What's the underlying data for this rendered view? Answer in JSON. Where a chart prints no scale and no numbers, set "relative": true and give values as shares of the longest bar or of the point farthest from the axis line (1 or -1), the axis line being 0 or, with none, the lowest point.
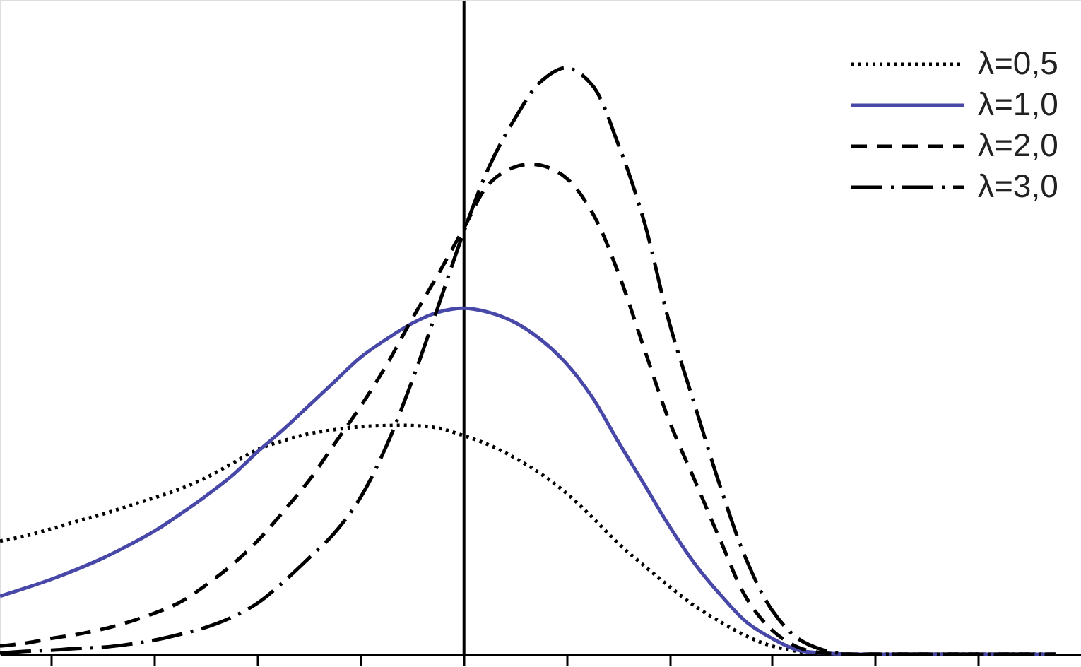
{
  "chart_data": {
    "type": "line",
    "relative": true,
    "legend": "top right",
    "categories": [
      null,
      null,
      null,
      null,
      null,
      null,
      null,
      null,
      null,
      null,
      null,
      null,
      null,
      null,
      null,
      null,
      null,
      null,
      null,
      null,
      null,
      null,
      null,
      null,
      null,
      null,
      null,
      null,
      null,
      null,
      null,
      null,
      null,
      null,
      null,
      null,
      null,
      null,
      null,
      null,
      null,
      null
    ],
    "series": [
      {
        "name": "λ=0,5",
        "color": "#000000",
        "line_style": "dotted",
        "values": [
          0.193,
          0.202,
          0.214,
          0.227,
          0.239,
          0.253,
          0.267,
          0.282,
          0.301,
          0.325,
          0.349,
          0.364,
          0.376,
          0.383,
          0.388,
          0.39,
          0.39,
          0.386,
          0.373,
          0.357,
          0.335,
          0.308,
          0.275,
          0.234,
          0.19,
          0.152,
          0.116,
          0.082,
          0.055,
          0.031,
          0.014,
          0.005,
          0,
          0,
          0,
          0,
          0,
          0,
          0,
          0,
          0,
          0
        ]
      },
      {
        "name": "λ=1,0",
        "color": "#4848a8",
        "line_style": "solid",
        "values": [
          0.099,
          0.113,
          0.128,
          0.145,
          0.164,
          0.186,
          0.21,
          0.239,
          0.27,
          0.304,
          0.345,
          0.383,
          0.424,
          0.465,
          0.506,
          0.537,
          0.564,
          0.583,
          0.59,
          0.583,
          0.566,
          0.537,
          0.496,
          0.439,
          0.364,
          0.292,
          0.219,
          0.154,
          0.101,
          0.055,
          0.027,
          0.007,
          0.002,
          0,
          0,
          0,
          0,
          0,
          0,
          0,
          0,
          0
        ]
      },
      {
        "name": "λ=2,0",
        "color": "#000000",
        "line_style": "dashed",
        "values": [
          0.014,
          0.019,
          0.027,
          0.034,
          0.043,
          0.055,
          0.07,
          0.089,
          0.118,
          0.152,
          0.193,
          0.243,
          0.296,
          0.359,
          0.422,
          0.492,
          0.571,
          0.646,
          0.725,
          0.802,
          0.831,
          0.834,
          0.812,
          0.754,
          0.653,
          0.525,
          0.398,
          0.296,
          0.193,
          0.096,
          0.041,
          0.012,
          0.002,
          0,
          0,
          0,
          0,
          0,
          0,
          0,
          0,
          0
        ]
      },
      {
        "name": "λ=3,0",
        "color": "#000000",
        "line_style": "dashdot",
        "values": [
          0.002,
          0.005,
          0.007,
          0.01,
          0.012,
          0.017,
          0.024,
          0.034,
          0.046,
          0.063,
          0.087,
          0.123,
          0.164,
          0.207,
          0.267,
          0.354,
          0.465,
          0.59,
          0.718,
          0.831,
          0.913,
          0.976,
          1.0,
          0.971,
          0.872,
          0.742,
          0.566,
          0.424,
          0.284,
          0.161,
          0.075,
          0.027,
          0.007,
          0,
          0,
          0,
          0,
          0,
          0,
          0,
          0,
          0
        ]
      }
    ]
  }
}
